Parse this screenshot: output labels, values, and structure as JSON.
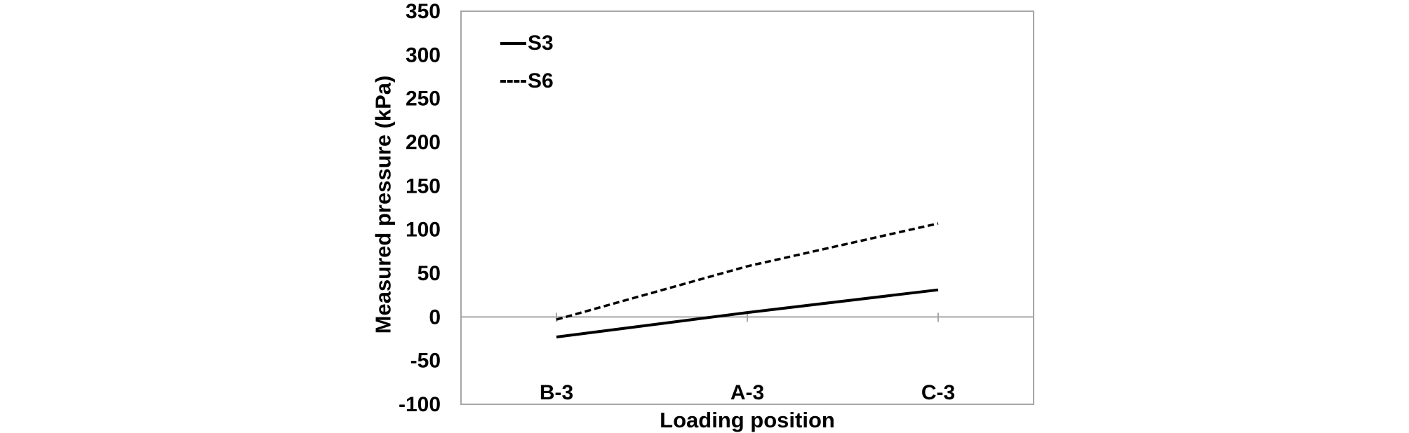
{
  "figure": {
    "background": "#ffffff"
  },
  "chart_data": {
    "type": "line",
    "categories": [
      "B-3",
      "A-3",
      "C-3"
    ],
    "series": [
      {
        "name": "S3",
        "style": "solid",
        "color": "#000000",
        "values": [
          -23,
          5,
          31
        ]
      },
      {
        "name": "S6",
        "style": "dashed",
        "color": "#000000",
        "values": [
          -3,
          58,
          107
        ]
      }
    ],
    "xlabel": "Loading position",
    "ylabel": "Measured pressure (kPa)",
    "ylim": [
      -100,
      350
    ],
    "yticks": [
      350,
      300,
      250,
      200,
      150,
      100,
      50,
      0,
      -50,
      -100
    ],
    "grid": "zero-line-only",
    "legend_position": "top-left-inside",
    "axis_color": "#a6a6a6",
    "text_color": "#000000"
  }
}
